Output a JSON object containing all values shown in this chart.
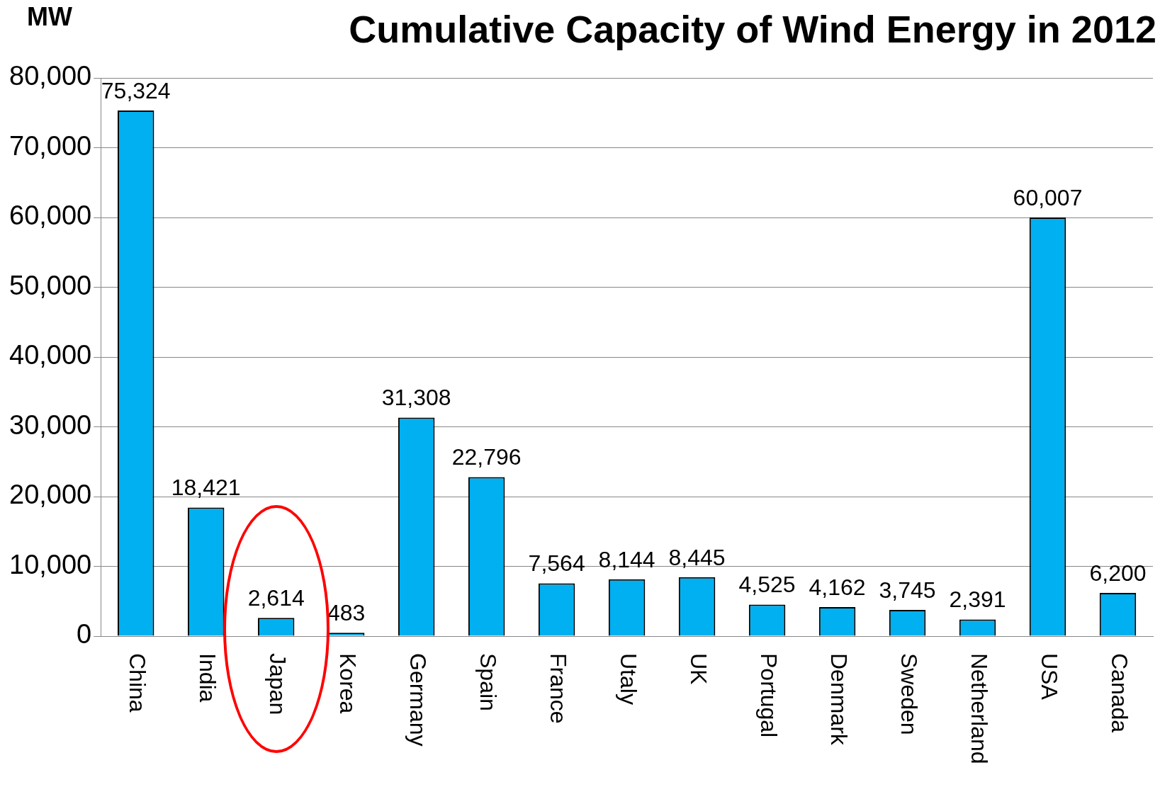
{
  "chart_data": {
    "type": "bar",
    "title": "Cumulative Capacity of Wind Energy in 2012",
    "ylabel": "MW",
    "categories": [
      "China",
      "India",
      "Japan",
      "Korea",
      "Germany",
      "Spain",
      "France",
      "Utaly",
      "UK",
      "Portugal",
      "Denmark",
      "Sweden",
      "Netherland",
      "USA",
      "Canada"
    ],
    "values": [
      75324,
      18421,
      2614,
      483,
      31308,
      22796,
      7564,
      8144,
      8445,
      4525,
      4162,
      3745,
      2391,
      60007,
      6200
    ],
    "value_labels": [
      "75,324",
      "18,421",
      "2,614",
      "483",
      "31,308",
      "22,796",
      "7,564",
      "8,144",
      "8,445",
      "4,525",
      "4,162",
      "3,745",
      "2,391",
      "60,007",
      "6,200"
    ],
    "color": "#00b0f0",
    "ylim": [
      0,
      80000
    ],
    "yticks": [
      0,
      {
        "value": 10000,
        "label": "10,000"
      },
      {
        "value": 20000,
        "label": "20,000"
      },
      {
        "value": 30000,
        "label": "30,000"
      },
      {
        "value": 40000,
        "label": "40,000"
      },
      {
        "value": 50000,
        "label": "50,000"
      },
      {
        "value": 60000,
        "label": "60,000"
      },
      {
        "value": 70000,
        "label": "70,000"
      },
      {
        "value": 80000,
        "label": "80,000"
      }
    ],
    "grid": "y"
  }
}
